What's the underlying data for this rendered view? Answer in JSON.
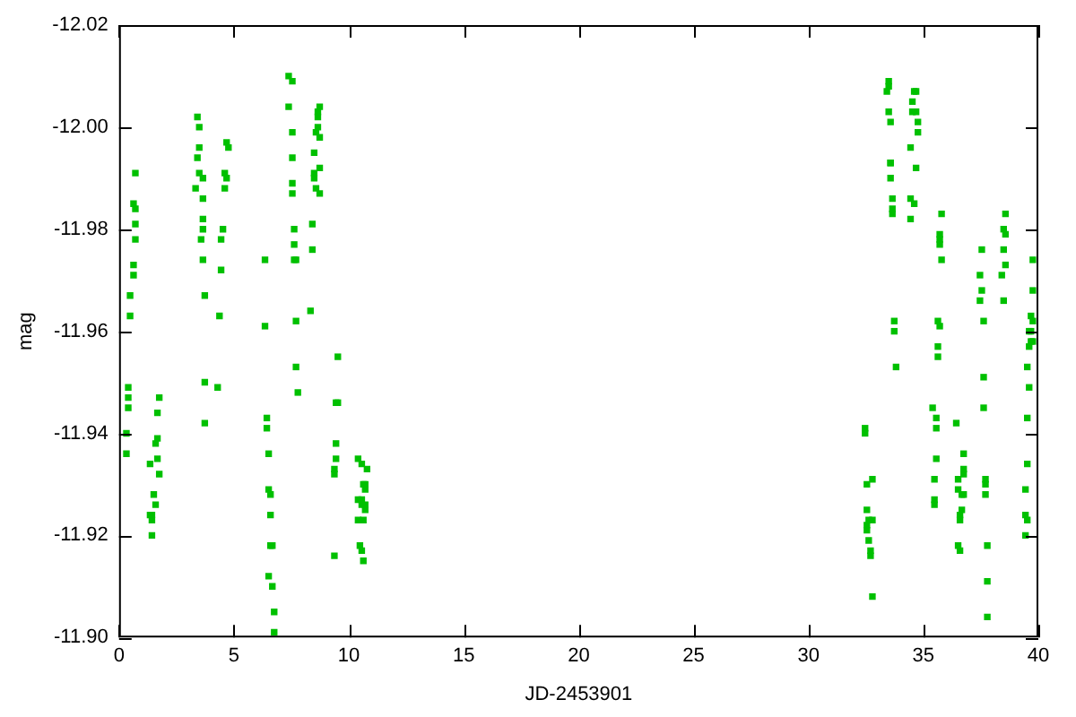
{
  "chart_data": {
    "type": "scatter",
    "xlabel": "JD-2453901",
    "ylabel": "mag",
    "xlim": [
      0,
      40
    ],
    "xticks": [
      0,
      5,
      10,
      15,
      20,
      25,
      30,
      35,
      40
    ],
    "ylim": [
      -11.9,
      -12.02
    ],
    "yticks": [
      {
        "value": -11.9,
        "label": "-11.90"
      },
      {
        "value": -11.92,
        "label": "-11.92"
      },
      {
        "value": -11.94,
        "label": "-11.94"
      },
      {
        "value": -11.96,
        "label": "-11.96"
      },
      {
        "value": -11.98,
        "label": "-11.98"
      },
      {
        "value": -12,
        "label": "-12.00"
      },
      {
        "value": -12.02,
        "label": "-12.02"
      }
    ],
    "grid": false,
    "legend": false,
    "marker": "square",
    "series": [
      {
        "color": "#00c000",
        "x": [
          0.4,
          0.4,
          0.4,
          0.32,
          0.32,
          0.48,
          0.48,
          0.63,
          0.63,
          0.71,
          0.71,
          0.71,
          0.63,
          0.71,
          1.75,
          1.67,
          1.67,
          1.59,
          1.67,
          1.75,
          1.35,
          1.51,
          1.59,
          1.43,
          1.43,
          1.35,
          1.43,
          3.41,
          3.49,
          3.49,
          3.41,
          3.49,
          3.65,
          3.33,
          3.65,
          3.65,
          3.65,
          3.57,
          3.65,
          3.73,
          3.73,
          3.73,
          4.68,
          4.76,
          4.6,
          4.68,
          4.6,
          4.52,
          4.44,
          4.44,
          4.37,
          4.29,
          6.35,
          6.35,
          6.43,
          6.43,
          6.51,
          6.51,
          6.59,
          6.59,
          6.67,
          6.59,
          6.51,
          6.67,
          6.75,
          6.75,
          7.38,
          7.54,
          7.38,
          7.54,
          7.54,
          7.54,
          7.54,
          7.62,
          7.62,
          7.62,
          7.7,
          7.7,
          7.7,
          7.78,
          8.73,
          8.65,
          8.65,
          8.65,
          8.57,
          8.73,
          8.49,
          8.73,
          8.49,
          8.49,
          8.57,
          8.73,
          8.41,
          8.41,
          8.33,
          9.52,
          9.44,
          9.52,
          9.44,
          9.44,
          9.37,
          9.37,
          9.37,
          10.4,
          10.56,
          10.79,
          10.63,
          10.71,
          10.71,
          10.4,
          10.56,
          10.71,
          10.56,
          10.71,
          10.4,
          10.63,
          10.48,
          10.56,
          10.63,
          32.46,
          32.46,
          32.78,
          32.54,
          32.54,
          32.78,
          32.62,
          32.54,
          32.54,
          32.62,
          32.7,
          32.7,
          32.78,
          33.49,
          33.49,
          33.41,
          33.49,
          33.57,
          33.57,
          33.57,
          33.57,
          33.65,
          33.65,
          33.65,
          33.73,
          33.73,
          33.81,
          34.6,
          34.68,
          34.52,
          34.52,
          34.68,
          34.76,
          34.76,
          34.44,
          34.68,
          34.44,
          34.6,
          34.44,
          35.79,
          35.71,
          35.71,
          35.71,
          35.79,
          35.63,
          35.71,
          35.63,
          35.63,
          35.4,
          35.56,
          35.56,
          35.56,
          35.48,
          35.48,
          35.48,
          36.43,
          36.75,
          36.75,
          36.75,
          36.51,
          36.51,
          36.75,
          36.67,
          36.67,
          36.59,
          36.59,
          36.51,
          36.59,
          37.54,
          37.46,
          37.54,
          37.46,
          37.62,
          37.62,
          37.62,
          37.7,
          37.7,
          37.7,
          37.78,
          37.78,
          37.78,
          38.57,
          38.49,
          38.57,
          38.49,
          38.57,
          38.41,
          38.49,
          39.76,
          39.76,
          39.68,
          39.76,
          39.68,
          39.6,
          39.76,
          39.68,
          39.6,
          39.52,
          39.6,
          39.52,
          39.52,
          39.44,
          39.44,
          39.52,
          39.44
        ],
        "values": [
          -11.949,
          -11.947,
          -11.945,
          -11.94,
          -11.936,
          -11.967,
          -11.963,
          -11.973,
          -11.971,
          -11.978,
          -11.981,
          -11.984,
          -11.985,
          -11.991,
          -11.947,
          -11.944,
          -11.939,
          -11.938,
          -11.935,
          -11.932,
          -11.934,
          -11.928,
          -11.926,
          -11.924,
          -11.923,
          -11.924,
          -11.92,
          -12.002,
          -12.0,
          -11.996,
          -11.994,
          -11.991,
          -11.99,
          -11.988,
          -11.986,
          -11.982,
          -11.98,
          -11.978,
          -11.974,
          -11.967,
          -11.95,
          -11.942,
          -11.997,
          -11.996,
          -11.991,
          -11.99,
          -11.988,
          -11.98,
          -11.978,
          -11.972,
          -11.963,
          -11.949,
          -11.974,
          -11.961,
          -11.943,
          -11.941,
          -11.936,
          -11.929,
          -11.928,
          -11.924,
          -11.918,
          -11.918,
          -11.912,
          -11.91,
          -11.905,
          -11.901,
          -12.01,
          -12.009,
          -12.004,
          -11.999,
          -11.994,
          -11.989,
          -11.987,
          -11.98,
          -11.977,
          -11.974,
          -11.974,
          -11.962,
          -11.953,
          -11.948,
          -12.004,
          -12.003,
          -12.002,
          -12.0,
          -11.999,
          -11.998,
          -11.995,
          -11.992,
          -11.991,
          -11.99,
          -11.988,
          -11.987,
          -11.981,
          -11.976,
          -11.964,
          -11.955,
          -11.946,
          -11.946,
          -11.938,
          -11.935,
          -11.933,
          -11.932,
          -11.916,
          -11.935,
          -11.934,
          -11.933,
          -11.93,
          -11.93,
          -11.929,
          -11.927,
          -11.927,
          -11.926,
          -11.926,
          -11.925,
          -11.923,
          -11.923,
          -11.918,
          -11.917,
          -11.915,
          -11.941,
          -11.94,
          -11.931,
          -11.93,
          -11.925,
          -11.923,
          -11.923,
          -11.922,
          -11.921,
          -11.919,
          -11.917,
          -11.916,
          -11.908,
          -12.009,
          -12.008,
          -12.007,
          -12.003,
          -12.001,
          -11.993,
          -11.993,
          -11.99,
          -11.986,
          -11.984,
          -11.983,
          -11.962,
          -11.96,
          -11.953,
          -12.007,
          -12.007,
          -12.005,
          -12.003,
          -12.003,
          -12.001,
          -11.999,
          -11.996,
          -11.992,
          -11.986,
          -11.985,
          -11.982,
          -11.983,
          -11.979,
          -11.978,
          -11.977,
          -11.974,
          -11.962,
          -11.961,
          -11.957,
          -11.955,
          -11.945,
          -11.943,
          -11.941,
          -11.935,
          -11.931,
          -11.927,
          -11.926,
          -11.942,
          -11.936,
          -11.933,
          -11.932,
          -11.931,
          -11.929,
          -11.928,
          -11.928,
          -11.925,
          -11.924,
          -11.923,
          -11.918,
          -11.917,
          -11.976,
          -11.971,
          -11.968,
          -11.966,
          -11.962,
          -11.951,
          -11.945,
          -11.931,
          -11.93,
          -11.928,
          -11.918,
          -11.911,
          -11.904,
          -11.983,
          -11.98,
          -11.979,
          -11.976,
          -11.973,
          -11.971,
          -11.966,
          -11.974,
          -11.968,
          -11.963,
          -11.962,
          -11.96,
          -11.96,
          -11.958,
          -11.958,
          -11.957,
          -11.953,
          -11.949,
          -11.943,
          -11.934,
          -11.929,
          -11.924,
          -11.923,
          -11.92
        ]
      }
    ]
  }
}
